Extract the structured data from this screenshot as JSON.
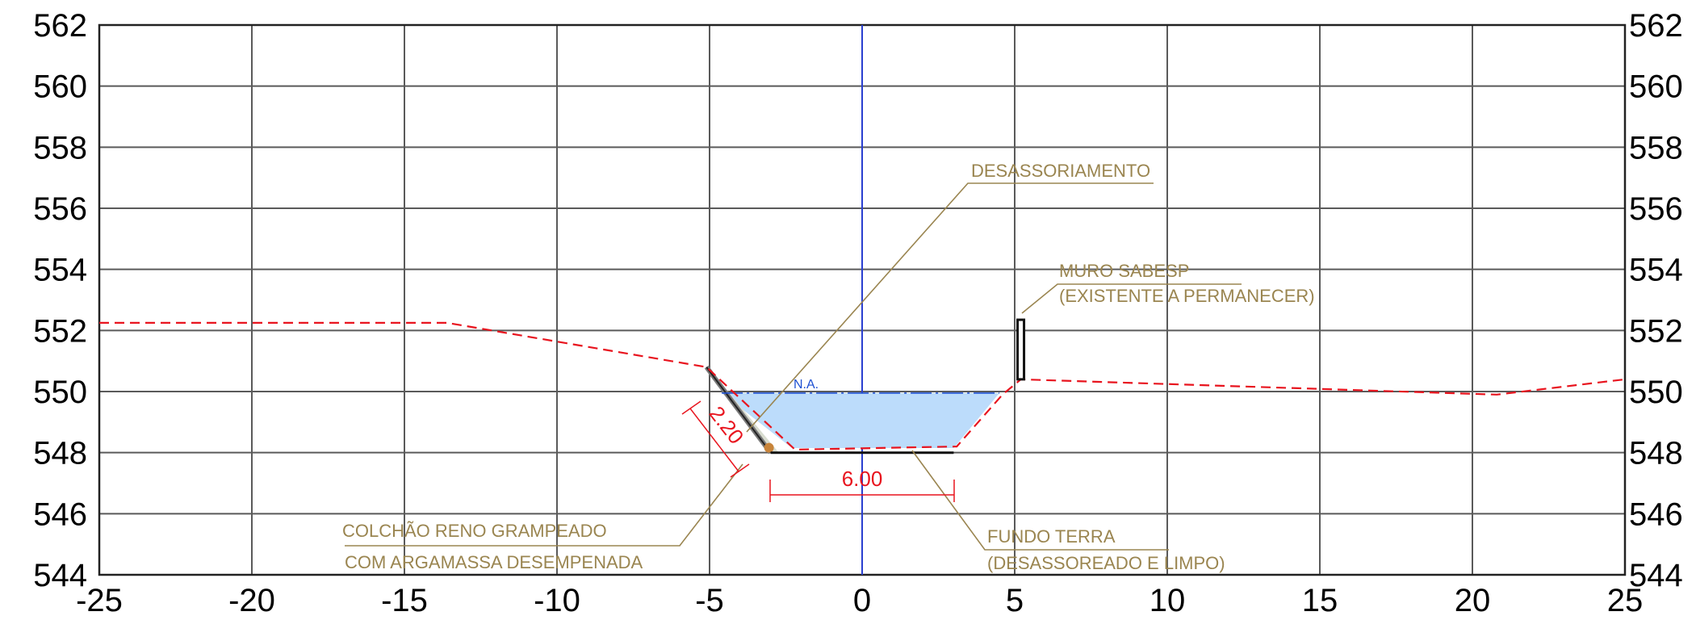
{
  "axes": {
    "x_min": -25,
    "x_max": 25,
    "x_step": 5,
    "y_min": 544,
    "y_max": 562,
    "y_step": 2,
    "x_ticks": [
      "-25",
      "-20",
      "-15",
      "-10",
      "-5",
      "0",
      "5",
      "10",
      "15",
      "20",
      "25"
    ],
    "y_ticks": [
      "544",
      "546",
      "548",
      "550",
      "552",
      "554",
      "556",
      "558",
      "560",
      "562"
    ]
  },
  "terrain": [
    [
      -25,
      552.25
    ],
    [
      -13.6,
      552.25
    ],
    [
      -5.1,
      550.8
    ],
    [
      -2.2,
      548.1
    ],
    [
      3.1,
      548.2
    ],
    [
      4.6,
      549.9
    ],
    [
      5.2,
      550.4
    ],
    [
      20.8,
      549.9
    ],
    [
      25,
      550.4
    ]
  ],
  "channel": {
    "bottom": [
      [
        -3,
        548
      ],
      [
        3,
        548
      ]
    ],
    "water_level": 549.95,
    "water_poly": [
      [
        -4.6,
        549.95
      ],
      [
        4.5,
        549.95
      ],
      [
        3,
        548.15
      ],
      [
        -2.3,
        548.15
      ]
    ],
    "slope_lining": [
      [
        -5.1,
        550.8
      ],
      [
        -3,
        548
      ]
    ]
  },
  "wall": {
    "x": 5.2,
    "y_bottom": 550.4,
    "y_top": 552.35
  },
  "labels": {
    "water_level": "N.A.",
    "dim_width": "6.00",
    "dim_slope": "2.20",
    "note_desassoriamento": "DESASSORIAMENTO",
    "note_muro_1": "MURO SABESP",
    "note_muro_2": "(EXISTENTE A PERMANECER)",
    "note_colchao_1": "COLCHÃO RENO GRAMPEADO",
    "note_colchao_2": "COM ARGAMASSA DESEMPENADA",
    "note_fundo_1": "FUNDO TERRA",
    "note_fundo_2": "(DESASSOREADO E LIMPO)"
  },
  "colors": {
    "grid": "#5a5a5a",
    "terrain": "#e8141e",
    "water_fill": "#bcdcfb",
    "water_line": "#1e50d2",
    "centerline": "#2a3fd0",
    "note": "#9a8550",
    "dimension": "#e8141e",
    "lining": "#7a7a7a",
    "lining_fill": "#d8dccf"
  }
}
